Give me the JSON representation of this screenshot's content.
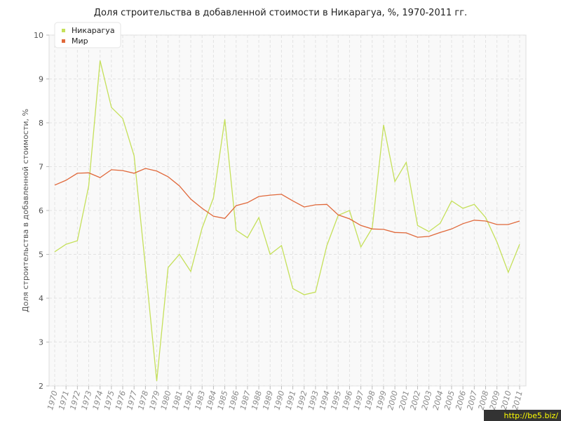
{
  "chart_data": {
    "type": "line",
    "title": "Доля строительства в добавленной стоимости в Никарагуа, %, 1970-2011 гг.",
    "y_label": "Доля строительства в добавленной стоимости, %",
    "categories": [
      "1970",
      "1971",
      "1972",
      "1973",
      "1974",
      "1975",
      "1976",
      "1977",
      "1978",
      "1979",
      "1980",
      "1981",
      "1982",
      "1983",
      "1984",
      "1985",
      "1986",
      "1987",
      "1988",
      "1989",
      "1990",
      "1991",
      "1992",
      "1993",
      "1994",
      "1995",
      "1996",
      "1997",
      "1998",
      "1999",
      "2000",
      "2001",
      "2002",
      "2003",
      "2004",
      "2005",
      "2006",
      "2007",
      "2008",
      "2009",
      "2010",
      "2011"
    ],
    "series": [
      {
        "name": "Никарагуа",
        "color": "#c5e05a",
        "values": [
          5.06,
          5.23,
          5.31,
          6.56,
          9.42,
          8.35,
          8.1,
          7.25,
          4.72,
          2.11,
          4.7,
          5.0,
          4.61,
          5.6,
          6.29,
          8.08,
          5.55,
          5.38,
          5.84,
          5.0,
          5.2,
          4.22,
          4.08,
          4.14,
          5.2,
          5.89,
          6.0,
          5.17,
          5.6,
          7.95,
          6.66,
          7.1,
          5.66,
          5.52,
          5.71,
          6.22,
          6.05,
          6.14,
          5.84,
          5.28,
          4.59,
          5.23
        ]
      },
      {
        "name": "Мир",
        "color": "#e0683a",
        "values": [
          6.58,
          6.69,
          6.85,
          6.86,
          6.75,
          6.93,
          6.91,
          6.85,
          6.96,
          6.9,
          6.77,
          6.56,
          6.26,
          6.05,
          5.87,
          5.82,
          6.11,
          6.18,
          6.32,
          6.35,
          6.37,
          6.22,
          6.08,
          6.13,
          6.14,
          5.9,
          5.81,
          5.66,
          5.58,
          5.57,
          5.5,
          5.49,
          5.39,
          5.41,
          5.5,
          5.58,
          5.7,
          5.78,
          5.76,
          5.68,
          5.68,
          5.76
        ]
      }
    ],
    "ylim": [
      2,
      10
    ],
    "yticks": [
      2,
      3,
      4,
      5,
      6,
      7,
      8,
      9,
      10
    ],
    "grid": true,
    "legend": "top-left"
  },
  "watermark": "http://be5.biz/"
}
